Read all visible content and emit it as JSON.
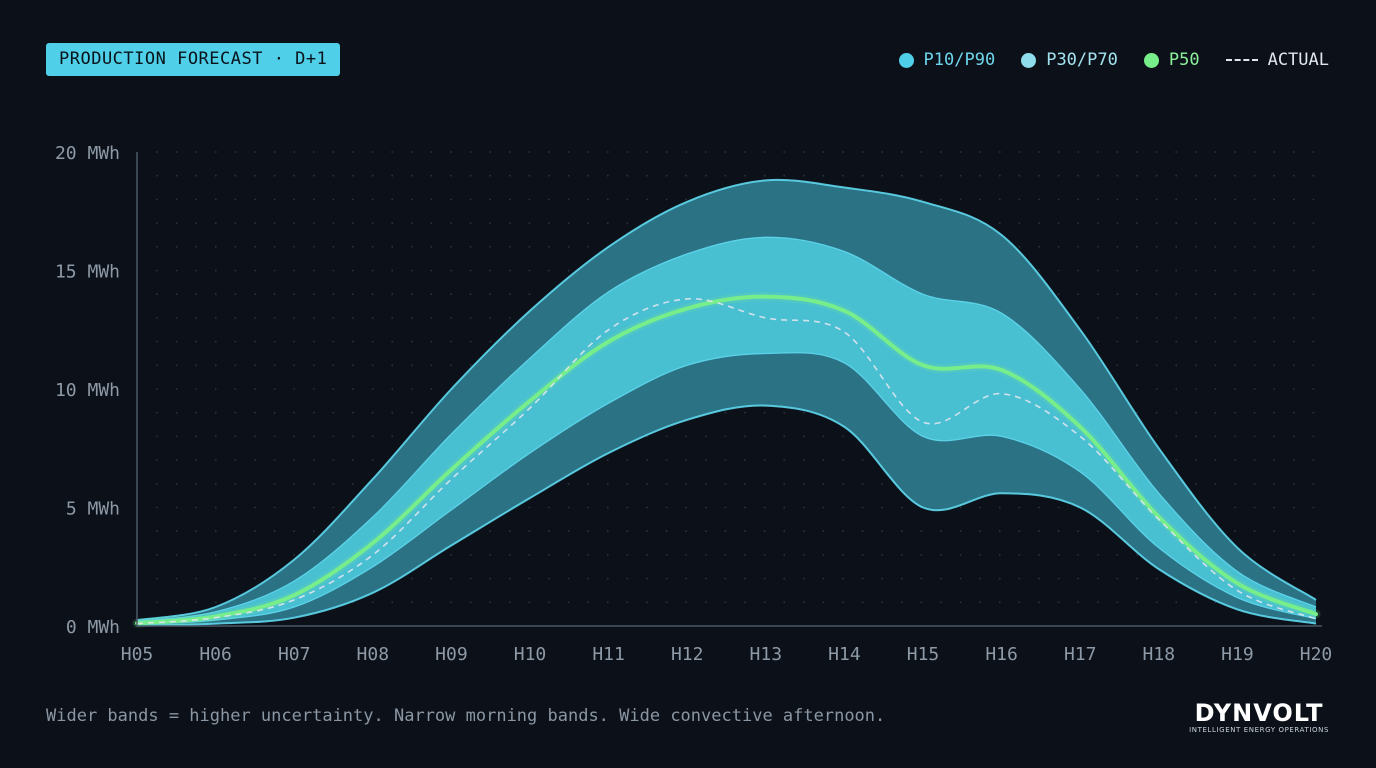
{
  "header": {
    "title": "PRODUCTION FORECAST · D+1"
  },
  "legend": [
    {
      "label": "P10/P90",
      "color": "#4fcfe8",
      "marker": "dot"
    },
    {
      "label": "P30/P70",
      "color": "#8fdcec",
      "marker": "dot"
    },
    {
      "label": "P50",
      "color": "#78ee8a",
      "marker": "dot"
    },
    {
      "label": "ACTUAL",
      "color": "#dfe6ee",
      "marker": "dash"
    }
  ],
  "footer": {
    "note": "Wider bands = higher uncertainty. Narrow morning bands. Wide convective afternoon."
  },
  "brand": {
    "name": "DYNVOLT",
    "tagline": "INTELLIGENT ENERGY OPERATIONS"
  },
  "chart_data": {
    "type": "area",
    "x": [
      "H05",
      "H06",
      "H07",
      "H08",
      "H09",
      "H10",
      "H11",
      "H12",
      "H13",
      "H14",
      "H15",
      "H16",
      "H17",
      "H18",
      "H19",
      "H20"
    ],
    "yticks": [
      "0 MWh",
      "5 MWh",
      "10 MWh",
      "15 MWh",
      "20 MWh"
    ],
    "ylim": [
      0,
      20
    ],
    "grid": "dotted",
    "series": [
      {
        "name": "P90",
        "values": [
          0.25,
          0.8,
          2.8,
          6.2,
          10.0,
          13.3,
          16.0,
          17.9,
          18.8,
          18.5,
          17.9,
          16.5,
          12.5,
          7.5,
          3.3,
          1.1
        ]
      },
      {
        "name": "P70",
        "values": [
          0.2,
          0.6,
          1.9,
          4.6,
          8.1,
          11.3,
          14.1,
          15.7,
          16.4,
          15.8,
          14.0,
          13.2,
          10.0,
          5.6,
          2.3,
          0.8
        ]
      },
      {
        "name": "P50",
        "values": [
          0.12,
          0.4,
          1.3,
          3.5,
          6.6,
          9.5,
          12.0,
          13.4,
          13.9,
          13.3,
          11.0,
          10.8,
          8.4,
          4.6,
          1.8,
          0.5
        ]
      },
      {
        "name": "P30",
        "values": [
          0.06,
          0.25,
          0.8,
          2.5,
          4.9,
          7.3,
          9.4,
          11.0,
          11.5,
          11.1,
          8.0,
          8.0,
          6.5,
          3.3,
          1.2,
          0.3
        ]
      },
      {
        "name": "P10",
        "values": [
          0.02,
          0.1,
          0.35,
          1.4,
          3.4,
          5.4,
          7.3,
          8.7,
          9.3,
          8.4,
          5.0,
          5.6,
          5.0,
          2.4,
          0.7,
          0.1
        ]
      },
      {
        "name": "ACTUAL",
        "values": [
          0.1,
          0.35,
          1.1,
          3.0,
          6.2,
          9.2,
          12.5,
          13.8,
          13.0,
          12.4,
          8.6,
          9.8,
          8.0,
          4.5,
          1.5,
          0.3
        ]
      }
    ]
  },
  "colors": {
    "background": "#0c1119",
    "outer_band": "#2f7f93",
    "inner_band": "#4bc3d6",
    "band_edge": "#5fd8ee",
    "p50_line": "#78ee8a",
    "actual_line": "#dfe6ee"
  }
}
